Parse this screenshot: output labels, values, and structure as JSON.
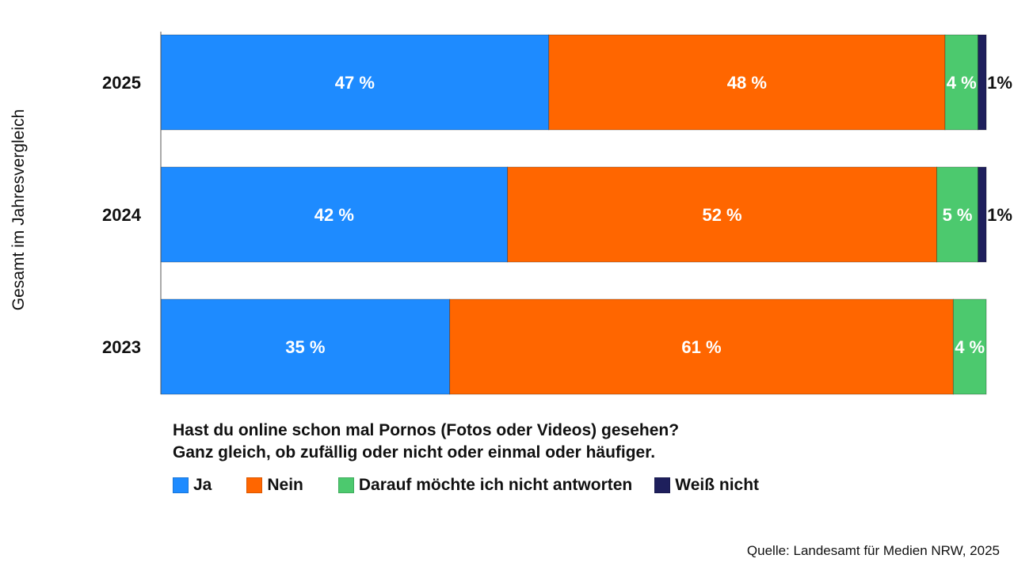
{
  "chart_data": {
    "type": "bar",
    "orientation": "horizontal",
    "stacked": true,
    "ylabel": "Gesamt im Jahresvergleich",
    "categories": [
      "2025",
      "2024",
      "2023"
    ],
    "xlim": [
      0,
      100
    ],
    "grid": false,
    "series": [
      {
        "name": "Ja",
        "color": "#1E8BFF",
        "values": [
          47,
          42,
          35
        ],
        "labels": [
          "47 %",
          "42 %",
          "35 %"
        ]
      },
      {
        "name": "Nein",
        "color": "#FF6600",
        "values": [
          48,
          52,
          61
        ],
        "labels": [
          "48 %",
          "52 %",
          "61 %"
        ]
      },
      {
        "name": "Darauf möchte ich nicht antworten",
        "color": "#4CC96E",
        "values": [
          4,
          5,
          4
        ],
        "labels": [
          "4 %",
          "5 %",
          "4 %"
        ]
      },
      {
        "name": "Weiß nicht",
        "color": "#1E1F5C",
        "values": [
          1,
          1,
          0
        ],
        "labels": [
          "1%",
          "1%",
          ""
        ]
      }
    ],
    "legend_placement": "bottom",
    "question": [
      "Hast du online schon mal Pornos (Fotos oder Videos) gesehen?",
      "Ganz gleich, ob zufällig oder nicht oder einmal oder häufiger."
    ],
    "source": "Quelle: Landesamt für Medien NRW, 2025"
  }
}
